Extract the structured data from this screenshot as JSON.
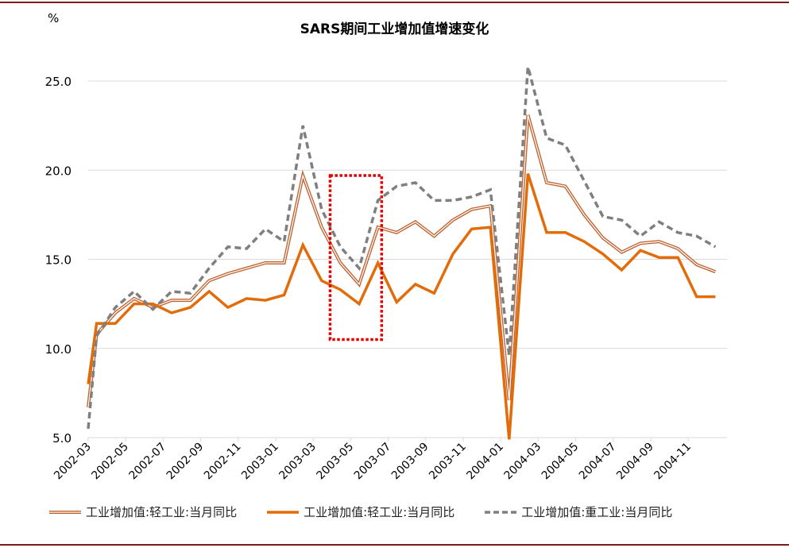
{
  "chart_data": {
    "type": "line",
    "title": "SARS期间工业增加值增速变化",
    "ylabel": "%",
    "xlabel": "",
    "ylim": [
      5,
      27
    ],
    "yticks": [
      "5.0",
      "10.0",
      "15.0",
      "20.0",
      "25.0"
    ],
    "ytick_values": [
      5,
      10,
      15,
      20,
      25
    ],
    "grid": true,
    "legend_position": "bottom",
    "xtick_labels": [
      "2002-03",
      "2002-05",
      "2002-07",
      "2002-09",
      "2002-11",
      "2003-01",
      "2003-03",
      "2003-05",
      "2003-07",
      "2003-09",
      "2003-11",
      "2004-01",
      "2004-03",
      "2004-05",
      "2004-07",
      "2004-09",
      "2004-11"
    ],
    "x": [
      0,
      0.45,
      1.45,
      2.45,
      3.45,
      4.45,
      5.45,
      6.45,
      7.45,
      8.45,
      9.45,
      10.45,
      11.45,
      12.45,
      13.45,
      14.45,
      15.45,
      16.45,
      17.45,
      18.45,
      19.45,
      20.45,
      21.45,
      22.45,
      23.45,
      24.45,
      25.45,
      26.45,
      27.45,
      28.45,
      29.45,
      30.45,
      31.45,
      32.45,
      33.45
    ],
    "series": [
      {
        "name": "工业增加值:轻工业:当月同比",
        "style": "double",
        "color": "#c0622f",
        "values": [
          6.7,
          10.8,
          12.0,
          12.8,
          12.3,
          12.7,
          12.7,
          13.8,
          14.2,
          14.5,
          14.8,
          14.8,
          19.7,
          16.8,
          14.8,
          13.6,
          16.8,
          16.5,
          17.1,
          16.3,
          17.2,
          17.8,
          18.0,
          7.1,
          23.1,
          19.3,
          19.1,
          17.5,
          16.2,
          15.4,
          15.9,
          16.0,
          15.6,
          14.7,
          14.3
        ]
      },
      {
        "name": "工业增加值:轻工业:当月同比",
        "style": "solid",
        "color": "#e36c0a",
        "values": [
          8.0,
          11.4,
          11.4,
          12.5,
          12.5,
          12.0,
          12.3,
          13.2,
          12.3,
          12.8,
          12.7,
          13.0,
          15.8,
          13.8,
          13.3,
          12.5,
          14.8,
          12.6,
          13.6,
          13.1,
          15.3,
          16.7,
          16.8,
          4.9,
          19.8,
          16.5,
          16.5,
          16.0,
          15.3,
          14.4,
          15.5,
          15.1,
          15.1,
          12.9,
          12.9
        ]
      },
      {
        "name": "工业增加值:重工业:当月同比",
        "style": "dashed",
        "color": "#7f7f7f",
        "values": [
          5.5,
          10.7,
          12.3,
          13.2,
          12.2,
          13.2,
          13.1,
          14.5,
          15.7,
          15.6,
          16.7,
          16.0,
          22.5,
          17.8,
          15.7,
          14.5,
          18.3,
          19.1,
          19.3,
          18.3,
          18.3,
          18.5,
          18.9,
          9.6,
          25.8,
          21.8,
          21.4,
          19.4,
          17.4,
          17.2,
          16.3,
          17.1,
          16.5,
          16.3,
          15.7
        ]
      }
    ],
    "annotations": [
      {
        "type": "dotted-rectangle",
        "color": "#e00000",
        "x_range": [
          12.9,
          15.65
        ],
        "y_range": [
          10.5,
          19.7
        ]
      }
    ]
  }
}
